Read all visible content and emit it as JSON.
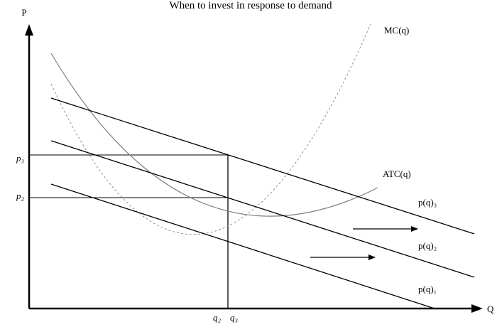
{
  "title": "When to invest in response to demand",
  "axes": {
    "y_label": "P",
    "x_label": "Q"
  },
  "curve_labels": {
    "mc": "MC(q)",
    "atc": "ATC(q)",
    "p3": "p(q)₃",
    "p2": "p(q)₂",
    "p1": "p(q)₁"
  },
  "price_labels": {
    "p3": "p₃",
    "p2": "p₂"
  },
  "quantity_labels": {
    "q2": "q₂",
    "q3": "q₃"
  },
  "colors": {
    "axis": "#000000",
    "demand": "#000000",
    "atc": "#808080",
    "mc": "#909090"
  }
}
